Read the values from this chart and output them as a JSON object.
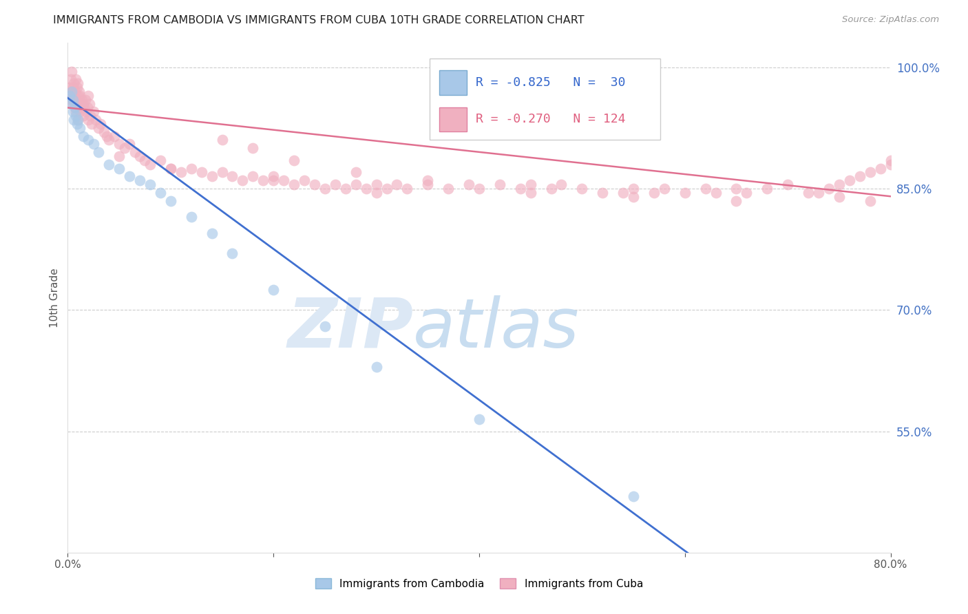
{
  "title": "IMMIGRANTS FROM CAMBODIA VS IMMIGRANTS FROM CUBA 10TH GRADE CORRELATION CHART",
  "source": "Source: ZipAtlas.com",
  "ylabel": "10th Grade",
  "x_min": 0.0,
  "x_max": 80.0,
  "y_min": 40.0,
  "y_max": 103.0,
  "yticks": [
    55.0,
    70.0,
    85.0,
    100.0
  ],
  "ytick_labels": [
    "55.0%",
    "70.0%",
    "85.0%",
    "100.0%"
  ],
  "R_cambodia": -0.825,
  "N_cambodia": 30,
  "R_cuba": -0.27,
  "N_cuba": 124,
  "color_cambodia": "#a8c8e8",
  "color_cuba": "#f0b0c0",
  "line_color_cambodia": "#4070d0",
  "line_color_cuba": "#e07090",
  "legend_label_cambodia": "Immigrants from Cambodia",
  "legend_label_cuba": "Immigrants from Cuba",
  "cam_x": [
    0.2,
    0.3,
    0.4,
    0.5,
    0.5,
    0.6,
    0.7,
    0.8,
    0.9,
    1.0,
    1.2,
    1.5,
    2.0,
    2.5,
    3.0,
    4.0,
    5.0,
    6.0,
    7.0,
    8.0,
    9.0,
    10.0,
    12.0,
    14.0,
    16.0,
    20.0,
    25.0,
    30.0,
    40.0,
    55.0
  ],
  "cam_y": [
    96.5,
    95.5,
    97.0,
    94.5,
    96.0,
    93.5,
    95.0,
    94.0,
    93.0,
    93.5,
    92.5,
    91.5,
    91.0,
    90.5,
    89.5,
    88.0,
    87.5,
    86.5,
    86.0,
    85.5,
    84.5,
    83.5,
    81.5,
    79.5,
    77.0,
    72.5,
    68.0,
    63.0,
    56.5,
    47.0
  ],
  "cuba_x": [
    0.2,
    0.3,
    0.3,
    0.4,
    0.4,
    0.5,
    0.5,
    0.5,
    0.6,
    0.6,
    0.7,
    0.7,
    0.8,
    0.8,
    0.8,
    0.9,
    0.9,
    1.0,
    1.0,
    1.0,
    1.0,
    1.1,
    1.1,
    1.2,
    1.2,
    1.3,
    1.4,
    1.5,
    1.5,
    1.6,
    1.7,
    1.8,
    1.9,
    2.0,
    2.0,
    2.1,
    2.2,
    2.3,
    2.5,
    2.7,
    3.0,
    3.2,
    3.5,
    3.8,
    4.0,
    4.5,
    5.0,
    5.5,
    6.0,
    6.5,
    7.0,
    7.5,
    8.0,
    9.0,
    10.0,
    11.0,
    12.0,
    13.0,
    14.0,
    15.0,
    16.0,
    17.0,
    18.0,
    19.0,
    20.0,
    21.0,
    22.0,
    23.0,
    24.0,
    25.0,
    26.0,
    27.0,
    28.0,
    29.0,
    30.0,
    31.0,
    32.0,
    33.0,
    35.0,
    37.0,
    39.0,
    40.0,
    42.0,
    44.0,
    45.0,
    47.0,
    48.0,
    50.0,
    52.0,
    54.0,
    55.0,
    57.0,
    58.0,
    60.0,
    62.0,
    63.0,
    65.0,
    66.0,
    68.0,
    70.0,
    72.0,
    73.0,
    74.0,
    75.0,
    76.0,
    77.0,
    78.0,
    79.0,
    80.0,
    80.0,
    15.0,
    18.0,
    22.0,
    28.0,
    35.0,
    45.0,
    55.0,
    65.0,
    75.0,
    78.0,
    5.0,
    10.0,
    20.0,
    30.0
  ],
  "cuba_y": [
    97.5,
    98.5,
    96.0,
    97.0,
    99.5,
    96.5,
    97.5,
    95.5,
    98.0,
    96.5,
    97.0,
    95.0,
    98.5,
    96.0,
    94.5,
    97.5,
    95.5,
    98.0,
    96.5,
    95.0,
    93.5,
    97.0,
    95.5,
    96.5,
    94.5,
    95.5,
    96.0,
    95.5,
    94.0,
    95.0,
    96.0,
    94.5,
    95.0,
    96.5,
    93.5,
    95.5,
    94.0,
    93.0,
    94.5,
    93.5,
    92.5,
    93.0,
    92.0,
    91.5,
    91.0,
    91.5,
    90.5,
    90.0,
    90.5,
    89.5,
    89.0,
    88.5,
    88.0,
    88.5,
    87.5,
    87.0,
    87.5,
    87.0,
    86.5,
    87.0,
    86.5,
    86.0,
    86.5,
    86.0,
    86.5,
    86.0,
    85.5,
    86.0,
    85.5,
    85.0,
    85.5,
    85.0,
    85.5,
    85.0,
    85.5,
    85.0,
    85.5,
    85.0,
    85.5,
    85.0,
    85.5,
    85.0,
    85.5,
    85.0,
    85.5,
    85.0,
    85.5,
    85.0,
    84.5,
    84.5,
    85.0,
    84.5,
    85.0,
    84.5,
    85.0,
    84.5,
    85.0,
    84.5,
    85.0,
    85.5,
    84.5,
    84.5,
    85.0,
    85.5,
    86.0,
    86.5,
    87.0,
    87.5,
    88.0,
    88.5,
    91.0,
    90.0,
    88.5,
    87.0,
    86.0,
    84.5,
    84.0,
    83.5,
    84.0,
    83.5,
    89.0,
    87.5,
    86.0,
    84.5
  ]
}
